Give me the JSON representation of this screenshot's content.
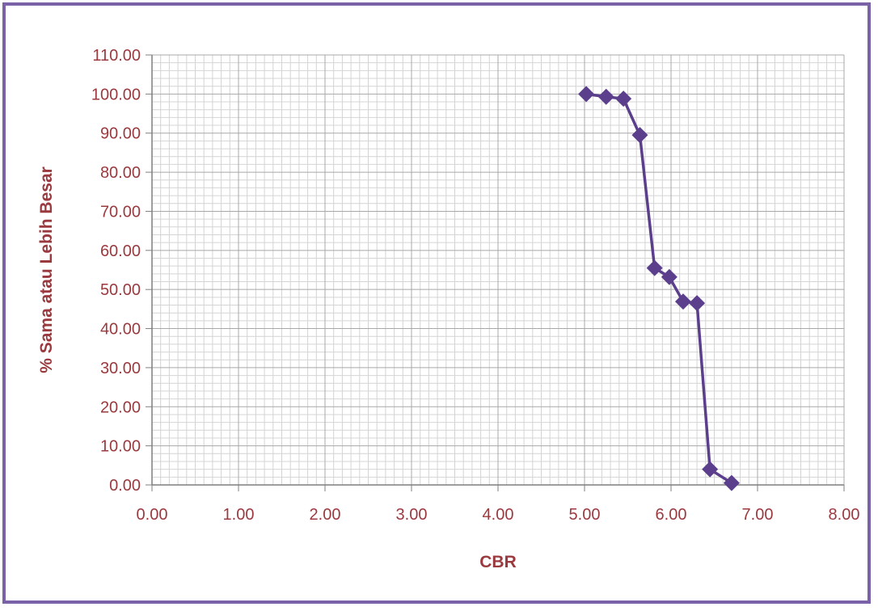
{
  "chart_data": {
    "type": "line",
    "xlabel": "CBR",
    "ylabel": "% Sama atau Lebih Besar",
    "xlim": [
      0,
      8
    ],
    "ylim": [
      0,
      110
    ],
    "x_ticks": [
      "0.00",
      "1.00",
      "2.00",
      "3.00",
      "4.00",
      "5.00",
      "6.00",
      "7.00",
      "8.00"
    ],
    "y_ticks": [
      "0.00",
      "10.00",
      "20.00",
      "30.00",
      "40.00",
      "50.00",
      "60.00",
      "70.00",
      "80.00",
      "90.00",
      "100.00",
      "110.00"
    ],
    "grid": true,
    "series": [
      {
        "marker": "diamond",
        "color": "#5b3f8c",
        "points": [
          {
            "x": 5.02,
            "y": 100.0
          },
          {
            "x": 5.25,
            "y": 99.3
          },
          {
            "x": 5.45,
            "y": 98.8
          },
          {
            "x": 5.64,
            "y": 89.5
          },
          {
            "x": 5.81,
            "y": 55.5
          },
          {
            "x": 5.98,
            "y": 53.2
          },
          {
            "x": 6.14,
            "y": 46.9
          },
          {
            "x": 6.3,
            "y": 46.5
          },
          {
            "x": 6.45,
            "y": 4.0
          },
          {
            "x": 6.7,
            "y": 0.5
          }
        ]
      }
    ]
  }
}
